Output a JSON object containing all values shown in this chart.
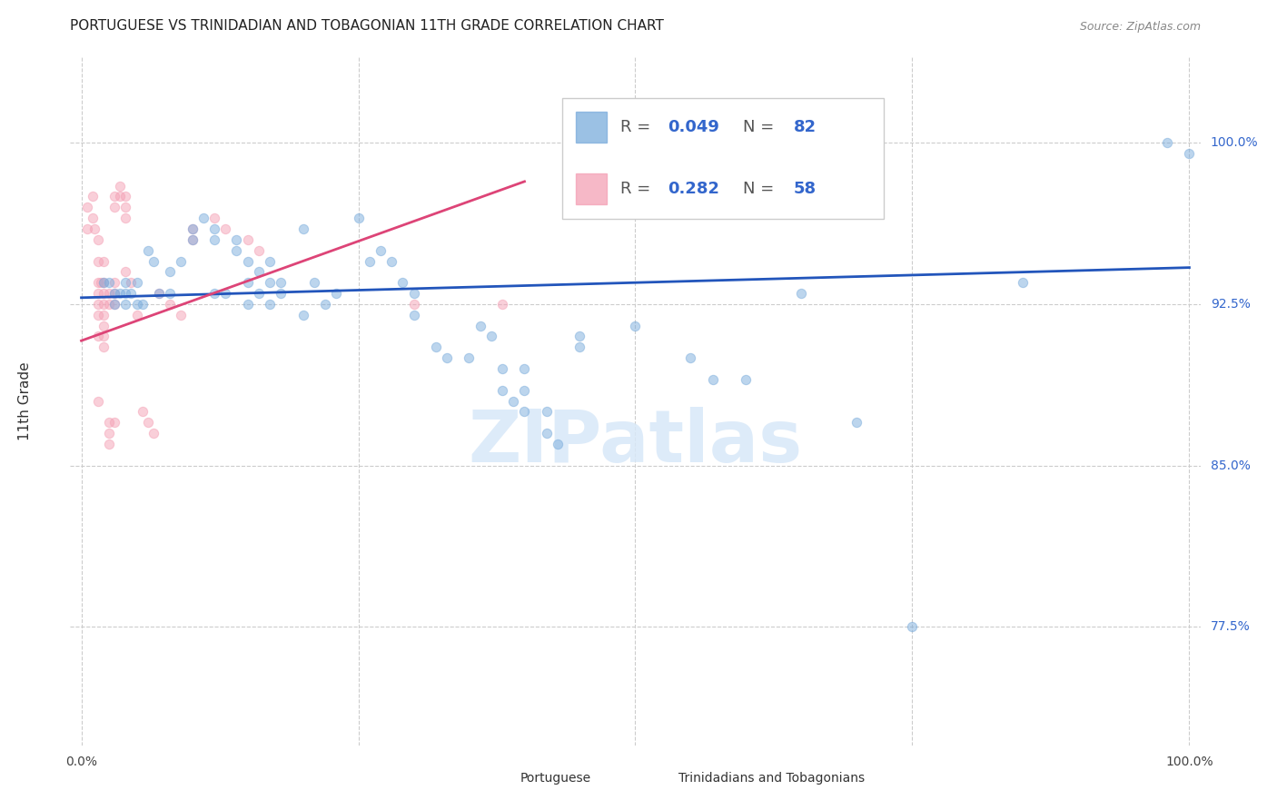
{
  "title": "PORTUGUESE VS TRINIDADIAN AND TOBAGONIAN 11TH GRADE CORRELATION CHART",
  "source": "Source: ZipAtlas.com",
  "ylabel": "11th Grade",
  "ytick_labels": [
    "77.5%",
    "85.0%",
    "92.5%",
    "100.0%"
  ],
  "ytick_values": [
    0.775,
    0.85,
    0.925,
    1.0
  ],
  "xlim": [
    -0.01,
    1.01
  ],
  "ylim": [
    0.72,
    1.04
  ],
  "blue_scatter": [
    [
      0.02,
      0.935
    ],
    [
      0.025,
      0.935
    ],
    [
      0.03,
      0.93
    ],
    [
      0.03,
      0.925
    ],
    [
      0.035,
      0.93
    ],
    [
      0.04,
      0.935
    ],
    [
      0.04,
      0.93
    ],
    [
      0.04,
      0.925
    ],
    [
      0.045,
      0.93
    ],
    [
      0.05,
      0.935
    ],
    [
      0.05,
      0.925
    ],
    [
      0.055,
      0.925
    ],
    [
      0.06,
      0.95
    ],
    [
      0.065,
      0.945
    ],
    [
      0.07,
      0.93
    ],
    [
      0.08,
      0.94
    ],
    [
      0.08,
      0.93
    ],
    [
      0.09,
      0.945
    ],
    [
      0.1,
      0.96
    ],
    [
      0.1,
      0.955
    ],
    [
      0.11,
      0.965
    ],
    [
      0.12,
      0.96
    ],
    [
      0.12,
      0.955
    ],
    [
      0.12,
      0.93
    ],
    [
      0.13,
      0.93
    ],
    [
      0.14,
      0.955
    ],
    [
      0.14,
      0.95
    ],
    [
      0.15,
      0.945
    ],
    [
      0.15,
      0.935
    ],
    [
      0.15,
      0.925
    ],
    [
      0.16,
      0.94
    ],
    [
      0.16,
      0.93
    ],
    [
      0.17,
      0.945
    ],
    [
      0.17,
      0.935
    ],
    [
      0.17,
      0.925
    ],
    [
      0.18,
      0.935
    ],
    [
      0.18,
      0.93
    ],
    [
      0.2,
      0.96
    ],
    [
      0.2,
      0.92
    ],
    [
      0.21,
      0.935
    ],
    [
      0.22,
      0.925
    ],
    [
      0.23,
      0.93
    ],
    [
      0.25,
      0.965
    ],
    [
      0.26,
      0.945
    ],
    [
      0.27,
      0.95
    ],
    [
      0.28,
      0.945
    ],
    [
      0.29,
      0.935
    ],
    [
      0.3,
      0.93
    ],
    [
      0.3,
      0.92
    ],
    [
      0.32,
      0.905
    ],
    [
      0.33,
      0.9
    ],
    [
      0.35,
      0.9
    ],
    [
      0.36,
      0.915
    ],
    [
      0.37,
      0.91
    ],
    [
      0.38,
      0.895
    ],
    [
      0.38,
      0.885
    ],
    [
      0.39,
      0.88
    ],
    [
      0.4,
      0.895
    ],
    [
      0.4,
      0.885
    ],
    [
      0.4,
      0.875
    ],
    [
      0.42,
      0.875
    ],
    [
      0.42,
      0.865
    ],
    [
      0.43,
      0.86
    ],
    [
      0.45,
      0.91
    ],
    [
      0.45,
      0.905
    ],
    [
      0.5,
      0.915
    ],
    [
      0.55,
      0.9
    ],
    [
      0.57,
      0.89
    ],
    [
      0.6,
      0.89
    ],
    [
      0.65,
      0.93
    ],
    [
      0.7,
      0.87
    ],
    [
      0.75,
      0.775
    ],
    [
      0.85,
      0.935
    ],
    [
      0.98,
      1.0
    ],
    [
      1.0,
      0.995
    ]
  ],
  "pink_scatter": [
    [
      0.005,
      0.97
    ],
    [
      0.005,
      0.96
    ],
    [
      0.01,
      0.975
    ],
    [
      0.01,
      0.965
    ],
    [
      0.012,
      0.96
    ],
    [
      0.015,
      0.955
    ],
    [
      0.015,
      0.945
    ],
    [
      0.015,
      0.935
    ],
    [
      0.015,
      0.93
    ],
    [
      0.015,
      0.925
    ],
    [
      0.015,
      0.92
    ],
    [
      0.015,
      0.91
    ],
    [
      0.015,
      0.88
    ],
    [
      0.018,
      0.935
    ],
    [
      0.02,
      0.945
    ],
    [
      0.02,
      0.935
    ],
    [
      0.02,
      0.93
    ],
    [
      0.02,
      0.925
    ],
    [
      0.02,
      0.92
    ],
    [
      0.02,
      0.915
    ],
    [
      0.02,
      0.91
    ],
    [
      0.02,
      0.905
    ],
    [
      0.025,
      0.93
    ],
    [
      0.025,
      0.925
    ],
    [
      0.025,
      0.87
    ],
    [
      0.025,
      0.865
    ],
    [
      0.025,
      0.86
    ],
    [
      0.03,
      0.975
    ],
    [
      0.03,
      0.97
    ],
    [
      0.03,
      0.935
    ],
    [
      0.03,
      0.93
    ],
    [
      0.03,
      0.925
    ],
    [
      0.03,
      0.87
    ],
    [
      0.035,
      0.98
    ],
    [
      0.035,
      0.975
    ],
    [
      0.04,
      0.975
    ],
    [
      0.04,
      0.97
    ],
    [
      0.04,
      0.965
    ],
    [
      0.04,
      0.94
    ],
    [
      0.045,
      0.935
    ],
    [
      0.05,
      0.92
    ],
    [
      0.055,
      0.875
    ],
    [
      0.06,
      0.87
    ],
    [
      0.065,
      0.865
    ],
    [
      0.07,
      0.93
    ],
    [
      0.08,
      0.925
    ],
    [
      0.09,
      0.92
    ],
    [
      0.1,
      0.96
    ],
    [
      0.1,
      0.955
    ],
    [
      0.12,
      0.965
    ],
    [
      0.13,
      0.96
    ],
    [
      0.15,
      0.955
    ],
    [
      0.16,
      0.95
    ],
    [
      0.3,
      0.925
    ],
    [
      0.38,
      0.925
    ]
  ],
  "blue_line_x": [
    0.0,
    1.0
  ],
  "blue_line_y": [
    0.928,
    0.942
  ],
  "pink_line_x": [
    0.0,
    0.4
  ],
  "pink_line_y": [
    0.908,
    0.982
  ],
  "watermark_text": "ZIPatlas",
  "blue_color": "#7aacdc",
  "pink_color": "#f4a0b5",
  "blue_line_color": "#2255bb",
  "pink_line_color": "#dd4477",
  "label_color_blue": "#3366cc",
  "dot_size": 55,
  "dot_alpha": 0.5,
  "grid_color": "#cccccc",
  "title_fontsize": 11,
  "source_fontsize": 9,
  "ylabel_fontsize": 11,
  "tick_label_fontsize": 10,
  "legend_fontsize": 13
}
